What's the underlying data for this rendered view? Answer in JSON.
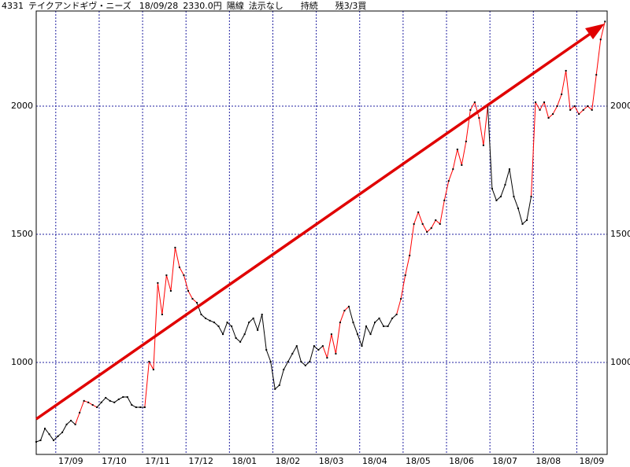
{
  "chart_data": {
    "type": "line",
    "title": [
      "4331",
      "テイクアンドギヴ・ニーズ",
      "18/09/28",
      "2330.0円",
      "陽線",
      "法示なし",
      "持続",
      "残3/3買"
    ],
    "values": [
      690,
      696,
      742,
      720,
      696,
      712,
      727,
      758,
      773,
      758,
      804,
      850,
      844,
      834,
      825,
      844,
      862,
      850,
      844,
      856,
      865,
      865,
      834,
      825,
      825,
      825,
      1003,
      972,
      1310,
      1187,
      1340,
      1279,
      1448,
      1371,
      1340,
      1279,
      1248,
      1233,
      1187,
      1172,
      1163,
      1156,
      1141,
      1110,
      1156,
      1141,
      1095,
      1080,
      1110,
      1156,
      1172,
      1126,
      1187,
      1049,
      1003,
      896,
      911,
      972,
      1003,
      1034,
      1064,
      1003,
      988,
      1003,
      1064,
      1049,
      1064,
      1018,
      1110,
      1034,
      1156,
      1202,
      1218,
      1156,
      1110,
      1064,
      1141,
      1110,
      1156,
      1172,
      1141,
      1141,
      1172,
      1187,
      1248,
      1340,
      1417,
      1540,
      1586,
      1540,
      1509,
      1524,
      1555,
      1540,
      1632,
      1708,
      1754,
      1831,
      1770,
      1862,
      1985,
      2015,
      1954,
      1847,
      2000,
      1678,
      1632,
      1647,
      1693,
      1754,
      1647,
      1601,
      1540,
      1555,
      1647,
      2015,
      1985,
      2015,
      1954,
      1969,
      2000,
      2046,
      2138,
      1985,
      2000,
      1969,
      1985,
      2000,
      1985,
      2122,
      2260,
      2330
    ],
    "colors": [
      "black",
      "black",
      "black",
      "black",
      "black",
      "black",
      "black",
      "black",
      "black",
      "black",
      "red",
      "red",
      "red",
      "red",
      "red",
      "black",
      "black",
      "black",
      "black",
      "black",
      "black",
      "black",
      "black",
      "black",
      "black",
      "black",
      "red",
      "red",
      "red",
      "red",
      "red",
      "red",
      "red",
      "red",
      "red",
      "red",
      "red",
      "red",
      "black",
      "black",
      "black",
      "black",
      "black",
      "black",
      "black",
      "black",
      "black",
      "black",
      "black",
      "black",
      "black",
      "black",
      "black",
      "black",
      "black",
      "black",
      "black",
      "black",
      "black",
      "black",
      "black",
      "black",
      "black",
      "black",
      "black",
      "black",
      "black",
      "red",
      "red",
      "red",
      "red",
      "red",
      "red",
      "black",
      "black",
      "black",
      "black",
      "black",
      "black",
      "black",
      "black",
      "black",
      "black",
      "black",
      "red",
      "red",
      "red",
      "red",
      "red",
      "red",
      "red",
      "red",
      "red",
      "red",
      "red",
      "red",
      "red",
      "red",
      "red",
      "red",
      "red",
      "red",
      "red",
      "red",
      "red",
      "black",
      "black",
      "black",
      "black",
      "black",
      "black",
      "black",
      "black",
      "black",
      "black",
      "red",
      "red",
      "red",
      "red",
      "red",
      "red",
      "red",
      "red",
      "red",
      "red",
      "red",
      "red",
      "red",
      "red",
      "red",
      "red",
      "red"
    ],
    "xlim": [
      0,
      131.5
    ],
    "xticks": [
      {
        "value": 4.5,
        "label": "17/09"
      },
      {
        "value": 14.5,
        "label": "17/10"
      },
      {
        "value": 24.5,
        "label": "17/11"
      },
      {
        "value": 34.5,
        "label": "17/12"
      },
      {
        "value": 44.5,
        "label": "18/01"
      },
      {
        "value": 54.5,
        "label": "18/02"
      },
      {
        "value": 64.5,
        "label": "18/03"
      },
      {
        "value": 74.5,
        "label": "18/04"
      },
      {
        "value": 84.5,
        "label": "18/05"
      },
      {
        "value": 94.5,
        "label": "18/06"
      },
      {
        "value": 104.5,
        "label": "18/07"
      },
      {
        "value": 114.5,
        "label": "18/08"
      },
      {
        "value": 124.5,
        "label": "18/09"
      }
    ],
    "ylim": [
      641,
      2371
    ],
    "yticks": [
      1000,
      1500,
      2000
    ],
    "grid": true,
    "grid_color": "#2020a0"
  }
}
